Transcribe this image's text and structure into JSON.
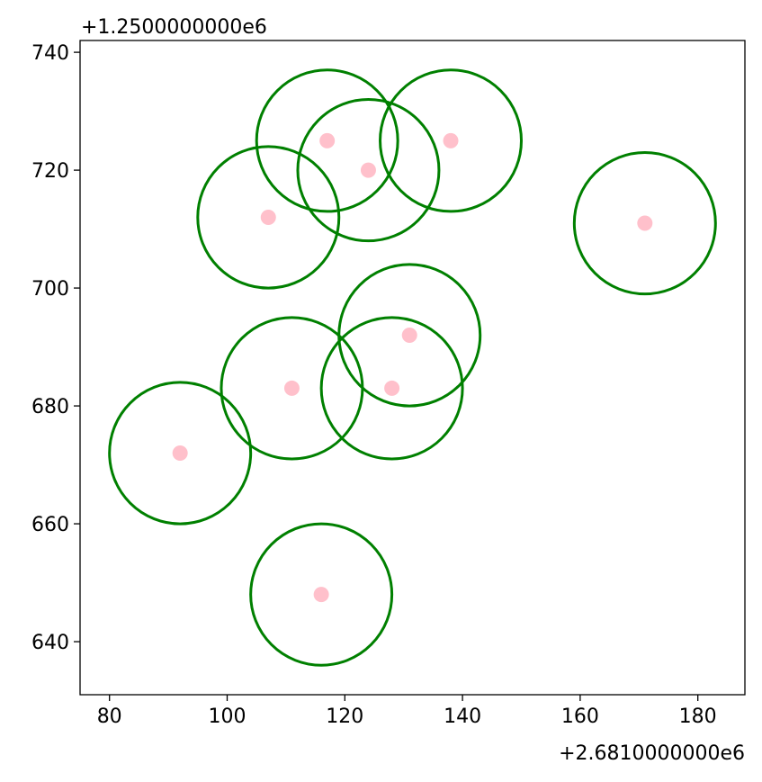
{
  "chart_data": {
    "type": "scatter",
    "title": "",
    "xlabel": "",
    "ylabel": "",
    "x_offset_label": "+2.6810000000e6",
    "y_offset_label": "+1.2500000000e6",
    "xlim": [
      75,
      188
    ],
    "ylim": [
      631,
      742
    ],
    "x_ticks": [
      80,
      100,
      120,
      140,
      160,
      180
    ],
    "y_ticks": [
      640,
      660,
      680,
      700,
      720,
      740
    ],
    "x_tick_labels": [
      "80",
      "100",
      "120",
      "140",
      "160",
      "180"
    ],
    "y_tick_labels": [
      "640",
      "660",
      "680",
      "700",
      "720",
      "740"
    ],
    "grid": false,
    "legend": "none",
    "point_color": "#ffc0cb",
    "circle_color": "#008000",
    "circle_radius": 12,
    "points": [
      {
        "x": 117,
        "y": 725
      },
      {
        "x": 124,
        "y": 720
      },
      {
        "x": 138,
        "y": 725
      },
      {
        "x": 107,
        "y": 712
      },
      {
        "x": 171,
        "y": 711
      },
      {
        "x": 131,
        "y": 692
      },
      {
        "x": 111,
        "y": 683
      },
      {
        "x": 128,
        "y": 683
      },
      {
        "x": 92,
        "y": 672
      },
      {
        "x": 116,
        "y": 648
      }
    ]
  }
}
